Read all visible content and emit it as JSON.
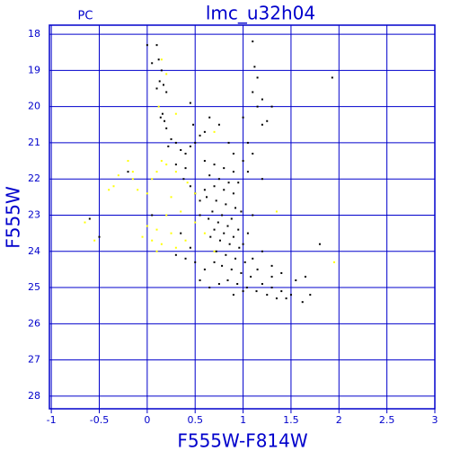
{
  "chart_data": {
    "type": "scatter",
    "title": "lmc_u32h04",
    "subtitle": "PC",
    "x_label": "F555W-F814W",
    "y_label": "F555W",
    "xlim": [
      -1.02,
      3
    ],
    "ylim": [
      28.35,
      17.75
    ],
    "xticks": [
      -1,
      -0.5,
      0,
      0.5,
      1,
      1.5,
      2,
      2.5,
      3
    ],
    "yticks": [
      18,
      19,
      20,
      21,
      22,
      23,
      24,
      25,
      26,
      27,
      28
    ],
    "grid": true,
    "axis_color": "#0000cc",
    "series": [
      {
        "color": "#000000",
        "x": [
          0.0,
          0.1,
          0.05,
          0.12,
          0.15,
          0.13,
          0.17,
          0.1,
          0.2,
          0.16,
          0.14,
          0.18,
          0.2,
          0.25,
          0.3,
          0.22,
          0.35,
          0.4,
          0.45,
          0.5,
          0.55,
          0.48,
          0.45,
          0.6,
          0.3,
          0.4,
          0.38,
          0.45,
          0.5,
          0.55,
          0.6,
          1.1,
          1.12,
          1.15,
          1.1,
          1.2,
          1.15,
          1.2,
          1.3,
          1.25,
          1.05,
          1.1,
          1.0,
          1.05,
          0.95,
          1.2,
          1.93,
          0.65,
          0.75,
          0.6,
          0.7,
          0.8,
          0.9,
          0.65,
          0.75,
          0.85,
          0.7,
          0.8,
          0.9,
          0.62,
          0.72,
          0.82,
          0.92,
          0.68,
          0.78,
          0.88,
          0.74,
          0.84,
          0.64,
          0.7,
          0.8,
          0.9,
          0.76,
          0.86,
          0.96,
          0.66,
          0.72,
          0.82,
          0.92,
          1.02,
          0.78,
          0.88,
          0.98,
          1.08,
          0.7,
          0.84,
          0.94,
          1.04,
          1.14,
          0.9,
          1.0,
          1.2,
          1.25,
          1.3,
          1.35,
          1.4,
          1.45,
          1.5,
          1.15,
          1.1,
          1.0,
          1.2,
          0.6,
          0.5,
          0.45,
          0.55,
          0.95,
          1.05,
          1.3,
          1.4,
          1.55,
          1.65,
          1.7,
          1.62,
          1.8,
          1.3,
          0.75,
          0.65,
          0.55,
          1.1,
          0.98,
          0.3,
          -0.5,
          -0.6,
          0.05,
          0.35,
          0.4,
          -0.2,
          0.9,
          1.0,
          0.85
        ],
        "values": [
          18.3,
          18.3,
          18.8,
          18.7,
          19.0,
          19.3,
          19.4,
          19.5,
          19.6,
          20.2,
          20.3,
          20.4,
          20.6,
          20.9,
          21.0,
          21.1,
          21.2,
          21.3,
          21.1,
          21.0,
          20.8,
          20.5,
          19.9,
          20.7,
          21.6,
          21.7,
          22.0,
          22.2,
          22.4,
          22.6,
          22.3,
          18.2,
          18.9,
          19.2,
          19.6,
          19.8,
          20.0,
          20.5,
          20.0,
          20.4,
          21.0,
          21.3,
          21.5,
          21.8,
          22.1,
          22.0,
          19.2,
          20.3,
          20.5,
          21.5,
          21.6,
          21.7,
          21.8,
          21.9,
          22.0,
          22.1,
          22.2,
          22.3,
          22.4,
          22.5,
          22.6,
          22.7,
          22.8,
          22.9,
          23.0,
          23.1,
          23.2,
          23.3,
          23.1,
          23.4,
          23.5,
          23.6,
          23.7,
          23.8,
          23.9,
          23.6,
          24.0,
          24.1,
          24.2,
          24.3,
          24.4,
          24.5,
          24.6,
          24.7,
          24.3,
          24.8,
          24.9,
          25.0,
          25.1,
          25.2,
          25.1,
          24.9,
          25.2,
          25.0,
          25.3,
          25.1,
          25.3,
          25.2,
          24.5,
          24.2,
          23.8,
          24.0,
          24.5,
          24.3,
          23.9,
          23.0,
          23.4,
          23.5,
          24.4,
          24.6,
          24.8,
          24.7,
          25.2,
          25.4,
          23.8,
          24.7,
          24.9,
          25.0,
          24.8,
          23.0,
          22.9,
          24.1,
          23.6,
          23.1,
          23.0,
          23.5,
          24.2,
          21.8,
          21.3,
          20.3,
          21.0
        ]
      },
      {
        "color": "#ffff00",
        "x": [
          -0.65,
          -0.55,
          -0.35,
          -0.3,
          -0.4,
          -0.2,
          -0.15,
          -0.1,
          0.0,
          0.05,
          0.1,
          0.15,
          0.2,
          0.3,
          0.25,
          0.35,
          0.2,
          0.1,
          0.15,
          0.05,
          -0.05,
          0.25,
          0.3,
          0.4,
          0.5,
          0.6,
          0.5,
          0.42,
          0.15,
          0.2,
          0.12,
          0.3,
          0.7,
          0.1,
          1.35,
          1.95,
          0.7,
          -0.15,
          0.0
        ],
        "values": [
          23.2,
          23.7,
          22.2,
          21.9,
          22.3,
          21.5,
          22.0,
          22.3,
          22.4,
          22.0,
          21.8,
          21.5,
          21.6,
          21.8,
          22.5,
          22.9,
          23.0,
          23.4,
          23.8,
          23.7,
          23.6,
          23.5,
          23.9,
          23.7,
          23.2,
          23.5,
          22.4,
          22.1,
          18.7,
          19.1,
          20.0,
          20.2,
          20.7,
          24.0,
          22.9,
          24.3,
          24.0,
          21.8,
          23.3
        ]
      }
    ]
  }
}
